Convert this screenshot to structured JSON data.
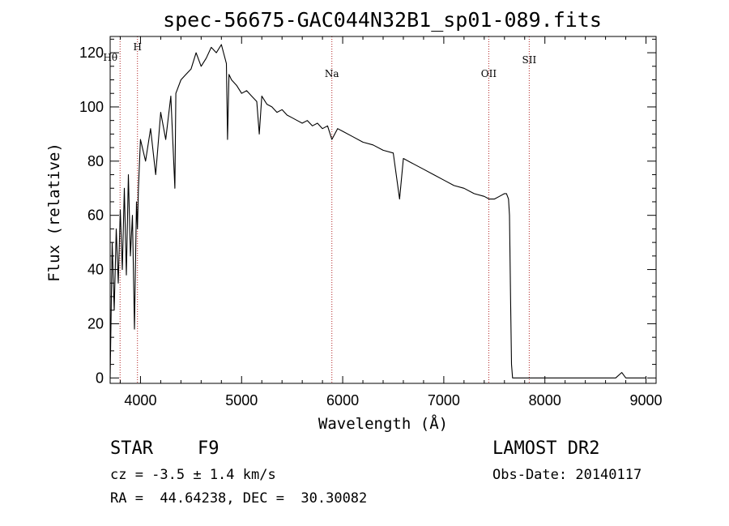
{
  "chart_data": {
    "type": "line",
    "title": "spec-56675-GAC044N32B1_sp01-089.fits",
    "xlabel": "Wavelength (Å)",
    "ylabel": "Flux (relative)",
    "xlim": [
      3700,
      9100
    ],
    "ylim": [
      -2,
      126
    ],
    "xticks": [
      4000,
      5000,
      6000,
      7000,
      8000,
      9000
    ],
    "yticks": [
      0,
      20,
      40,
      60,
      80,
      100,
      120
    ],
    "grid": false,
    "spectral_lines": [
      {
        "label": "Hθ",
        "x": 3798
      },
      {
        "label": "H",
        "x": 3970
      },
      {
        "label": "Na",
        "x": 5893
      },
      {
        "label": "OII",
        "x": 7445
      },
      {
        "label": "SII",
        "x": 7845
      }
    ],
    "series": [
      {
        "x": [
          3700,
          3720,
          3740,
          3760,
          3780,
          3800,
          3820,
          3840,
          3860,
          3880,
          3900,
          3920,
          3940,
          3960,
          3970,
          3980,
          4000,
          4050,
          4100,
          4150,
          4200,
          4250,
          4300,
          4340,
          4350,
          4400,
          4450,
          4500,
          4550,
          4600,
          4650,
          4700,
          4750,
          4800,
          4850,
          4861,
          4875,
          4900,
          4950,
          5000,
          5050,
          5100,
          5150,
          5175,
          5200,
          5250,
          5300,
          5350,
          5400,
          5450,
          5500,
          5550,
          5600,
          5650,
          5700,
          5750,
          5800,
          5850,
          5893,
          5950,
          6000,
          6100,
          6200,
          6300,
          6400,
          6500,
          6563,
          6600,
          6700,
          6800,
          6900,
          7000,
          7100,
          7200,
          7300,
          7400,
          7450,
          7500,
          7550,
          7600,
          7620,
          7640,
          7650,
          7660,
          7670,
          7680,
          7700,
          7800,
          7900,
          8000,
          8100,
          8200,
          8300,
          8400,
          8500,
          8600,
          8700,
          8760,
          8800,
          8900,
          9000
        ],
        "y": [
          0,
          50,
          25,
          55,
          35,
          62,
          40,
          70,
          38,
          75,
          45,
          60,
          18,
          65,
          55,
          70,
          88,
          80,
          92,
          75,
          98,
          88,
          104,
          70,
          105,
          110,
          112,
          114,
          120,
          115,
          118,
          122,
          120,
          123,
          116,
          88,
          112,
          110,
          108,
          105,
          106,
          104,
          102,
          90,
          104,
          101,
          100,
          98,
          99,
          97,
          96,
          95,
          94,
          95,
          93,
          94,
          92,
          93,
          88,
          92,
          91,
          89,
          87,
          86,
          84,
          83,
          66,
          81,
          79,
          77,
          75,
          73,
          71,
          70,
          68,
          67,
          66,
          66,
          67,
          68,
          68,
          66,
          60,
          30,
          5,
          0,
          0,
          0,
          0,
          0,
          0,
          0,
          0,
          0,
          0,
          0,
          0,
          2,
          0,
          0,
          0
        ]
      }
    ]
  },
  "info": {
    "object_class": "STAR",
    "subclass": "F9",
    "survey": "LAMOST DR2",
    "cz": "cz = -3.5 ± 1.4 km/s",
    "obs_date": "Obs-Date: 20140117",
    "coords": "RA =  44.64238, DEC =  30.30082"
  }
}
